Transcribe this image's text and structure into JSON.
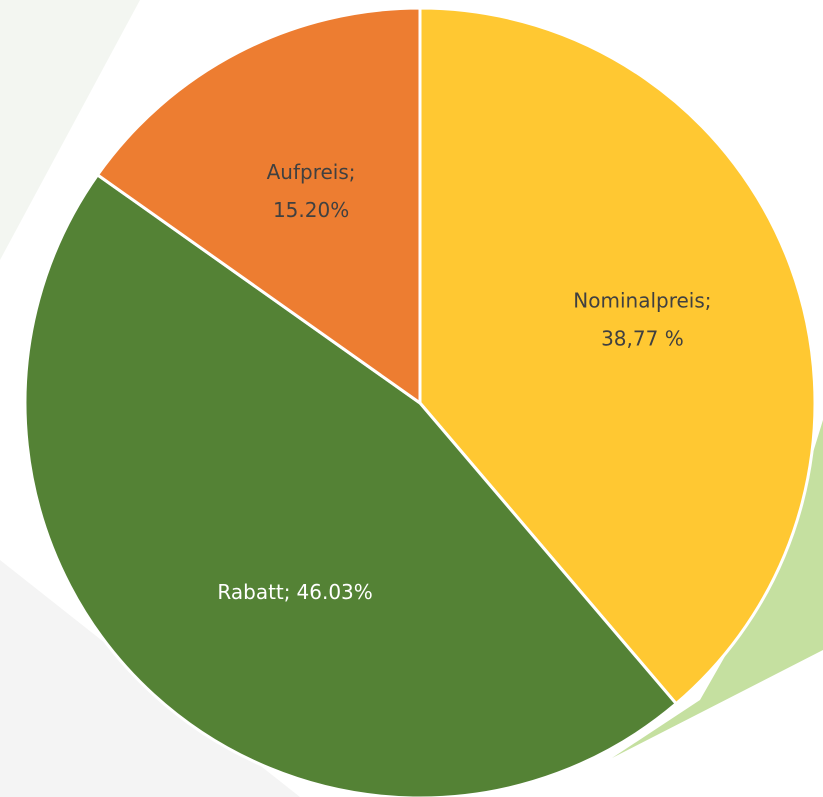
{
  "chart_data": {
    "type": "pie",
    "categories": [
      "Nominalpreis;",
      "Rabatt;",
      "Aufpreis;"
    ],
    "values": [
      38.77,
      46.03,
      15.2
    ],
    "value_labels": [
      "38,77 %",
      "46.03%",
      "15.20%"
    ],
    "colors": [
      "#ffc832",
      "#548235",
      "#ed7d31"
    ],
    "label_colors": [
      "#404040",
      "#ffffff",
      "#404040"
    ]
  }
}
